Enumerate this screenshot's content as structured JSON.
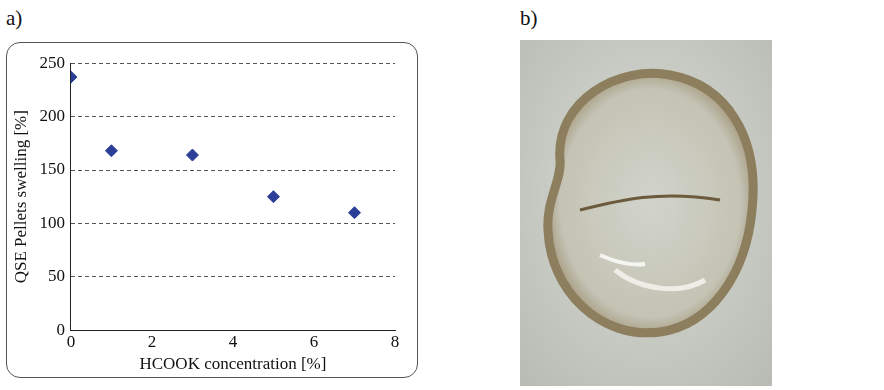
{
  "chart_data": {
    "type": "scatter",
    "panel_label": "a)",
    "x_label": "HCOOK concentration [%]",
    "y_label": "QSE Pellets swelling [%]",
    "x": [
      0,
      1,
      3,
      5,
      7
    ],
    "values": [
      237,
      168,
      164,
      125,
      110
    ],
    "color": "#2b3f99",
    "marker": "diamond",
    "xlim": [
      0,
      8
    ],
    "xticks": [
      0,
      2,
      4,
      6,
      8
    ],
    "ylim": [
      0,
      250
    ],
    "yticks": [
      0,
      50,
      100,
      150,
      200,
      250
    ],
    "grid": true
  },
  "photo": {
    "panel_label": "b)"
  }
}
